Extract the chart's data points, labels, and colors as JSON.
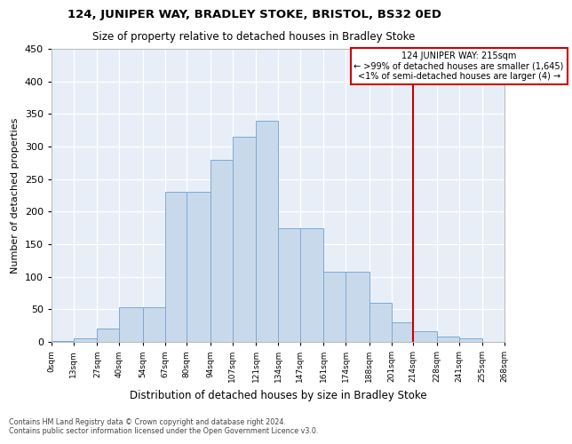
{
  "title": "124, JUNIPER WAY, BRADLEY STOKE, BRISTOL, BS32 0ED",
  "subtitle": "Size of property relative to detached houses in Bradley Stoke",
  "xlabel": "Distribution of detached houses by size in Bradley Stoke",
  "ylabel": "Number of detached properties",
  "bin_edges": [
    0,
    13,
    27,
    40,
    54,
    67,
    80,
    94,
    107,
    121,
    134,
    147,
    161,
    174,
    188,
    201,
    214,
    228,
    241,
    255,
    268
  ],
  "bin_labels": [
    "0sqm",
    "13sqm",
    "27sqm",
    "40sqm",
    "54sqm",
    "67sqm",
    "80sqm",
    "94sqm",
    "107sqm",
    "121sqm",
    "134sqm",
    "147sqm",
    "161sqm",
    "174sqm",
    "188sqm",
    "201sqm",
    "214sqm",
    "228sqm",
    "241sqm",
    "255sqm",
    "268sqm"
  ],
  "bar_heights": [
    1,
    5,
    20,
    53,
    53,
    230,
    230,
    280,
    315,
    340,
    175,
    175,
    108,
    108,
    60,
    30,
    17,
    8,
    5,
    0
  ],
  "bar_color": "#c9d9ec",
  "bar_edge_color": "#7aaad4",
  "vline_x": 214,
  "vline_color": "#cc0000",
  "annotation_text": "124 JUNIPER WAY: 215sqm\n← >99% of detached houses are smaller (1,645)\n<1% of semi-detached houses are larger (4) →",
  "annotation_box_facecolor": "#ffffff",
  "annotation_box_edgecolor": "#cc0000",
  "ylim": [
    0,
    450
  ],
  "yticks": [
    0,
    50,
    100,
    150,
    200,
    250,
    300,
    350,
    400,
    450
  ],
  "background_color": "#e8eef7",
  "grid_color": "#ffffff",
  "title_fontsize": 9.5,
  "subtitle_fontsize": 8.5,
  "footer_line1": "Contains HM Land Registry data © Crown copyright and database right 2024.",
  "footer_line2": "Contains public sector information licensed under the Open Government Licence v3.0."
}
